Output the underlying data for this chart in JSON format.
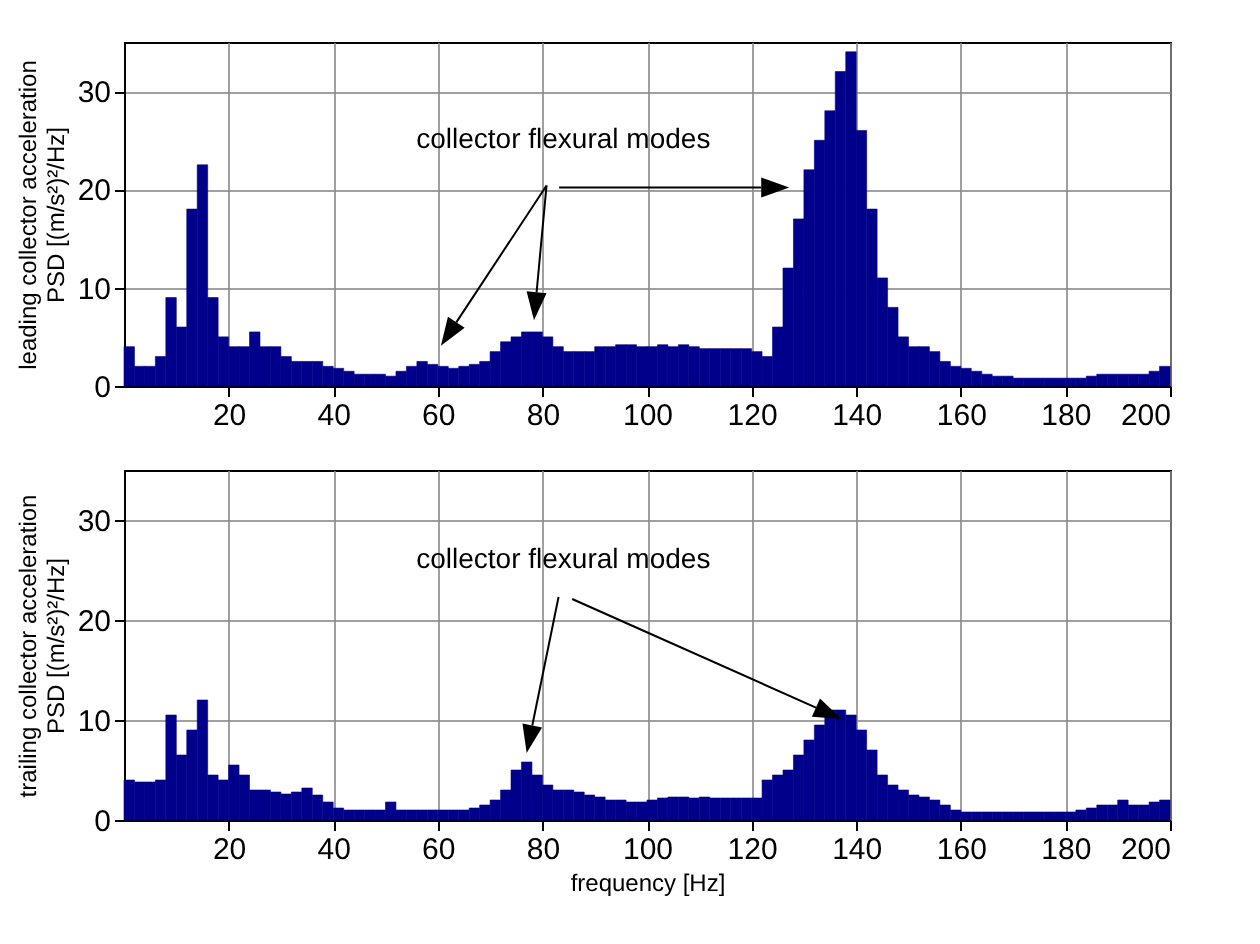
{
  "chart_data": [
    {
      "type": "histogram",
      "ylabel": "leading collector acceleration\nPSD [(m/s²)²/Hz]",
      "annotations": [
        "collector flexural modes"
      ],
      "color": "#00008b",
      "grid": true,
      "xlim": [
        0,
        200
      ],
      "xticks": [
        20,
        40,
        60,
        80,
        100,
        120,
        140,
        160,
        180,
        200
      ],
      "ylim": [
        0,
        35
      ],
      "yticks": [
        0,
        10,
        20,
        30
      ],
      "bins": [
        0,
        2,
        4,
        6,
        8,
        10,
        12,
        14,
        16,
        18,
        20,
        22,
        24,
        26,
        28,
        30,
        32,
        34,
        36,
        38,
        40,
        42,
        44,
        46,
        48,
        50,
        52,
        54,
        56,
        58,
        60,
        62,
        64,
        66,
        68,
        70,
        72,
        74,
        76,
        78,
        80,
        82,
        84,
        86,
        88,
        90,
        92,
        94,
        96,
        98,
        100,
        102,
        104,
        106,
        108,
        110,
        112,
        114,
        116,
        118,
        120,
        122,
        124,
        126,
        128,
        130,
        132,
        134,
        136,
        138,
        140,
        142,
        144,
        146,
        148,
        150,
        152,
        154,
        156,
        158,
        160,
        162,
        164,
        166,
        168,
        170,
        172,
        174,
        176,
        178,
        180,
        182,
        184,
        186,
        188,
        190,
        192,
        194,
        196,
        198,
        200
      ],
      "values": [
        4,
        2,
        2,
        3,
        9,
        6,
        18,
        22.5,
        9,
        5,
        4,
        4,
        5.5,
        4,
        4,
        3,
        2.5,
        2.5,
        2.5,
        2,
        1.8,
        1.5,
        1.2,
        1.2,
        1.2,
        1,
        1.5,
        2,
        2.5,
        2.2,
        2,
        1.8,
        2,
        2.2,
        2.5,
        3.5,
        4.5,
        5,
        5.5,
        5.5,
        5,
        4,
        3.5,
        3.5,
        3.5,
        4,
        4,
        4.2,
        4.2,
        4,
        4,
        4.2,
        4,
        4.2,
        4,
        3.8,
        3.8,
        3.8,
        3.8,
        3.8,
        3.5,
        3,
        6,
        12,
        17,
        22,
        25,
        28,
        32,
        34,
        26,
        18,
        11,
        8,
        5,
        4,
        4,
        3.5,
        2.5,
        2,
        1.8,
        1.5,
        1.2,
        1,
        1,
        0.8,
        0.8,
        0.8,
        0.8,
        0.8,
        0.8,
        0.8,
        1,
        1.2,
        1.2,
        1.2,
        1.2,
        1.2,
        1.5,
        2
      ]
    },
    {
      "type": "histogram",
      "ylabel": "trailing collector acceleration\nPSD [(m/s²)²/Hz]",
      "xlabel": "frequency [Hz]",
      "annotations": [
        "collector flexural modes"
      ],
      "color": "#00008b",
      "grid": true,
      "xlim": [
        0,
        200
      ],
      "xticks": [
        20,
        40,
        60,
        80,
        100,
        120,
        140,
        160,
        180,
        200
      ],
      "ylim": [
        0,
        35
      ],
      "yticks": [
        0,
        10,
        20,
        30
      ],
      "bins": [
        0,
        2,
        4,
        6,
        8,
        10,
        12,
        14,
        16,
        18,
        20,
        22,
        24,
        26,
        28,
        30,
        32,
        34,
        36,
        38,
        40,
        42,
        44,
        46,
        48,
        50,
        52,
        54,
        56,
        58,
        60,
        62,
        64,
        66,
        68,
        70,
        72,
        74,
        76,
        78,
        80,
        82,
        84,
        86,
        88,
        90,
        92,
        94,
        96,
        98,
        100,
        102,
        104,
        106,
        108,
        110,
        112,
        114,
        116,
        118,
        120,
        122,
        124,
        126,
        128,
        130,
        132,
        134,
        136,
        138,
        140,
        142,
        144,
        146,
        148,
        150,
        152,
        154,
        156,
        158,
        160,
        162,
        164,
        166,
        168,
        170,
        172,
        174,
        176,
        178,
        180,
        182,
        184,
        186,
        188,
        190,
        192,
        194,
        196,
        198,
        200
      ],
      "values": [
        4,
        3.8,
        3.8,
        4,
        10.5,
        6.5,
        9,
        12,
        4.5,
        4,
        5.5,
        4.5,
        3,
        3,
        2.8,
        2.6,
        2.8,
        3.2,
        2.5,
        1.8,
        1.2,
        1,
        1,
        1,
        1,
        1.8,
        1,
        1,
        1,
        1,
        1,
        1,
        1,
        1.2,
        1.5,
        2,
        3,
        5,
        5.8,
        4.5,
        3.5,
        3,
        3,
        2.8,
        2.5,
        2.3,
        2,
        2,
        1.8,
        1.8,
        2,
        2.2,
        2.3,
        2.3,
        2.2,
        2.3,
        2.2,
        2.2,
        2.2,
        2.2,
        2.2,
        4,
        4.5,
        5,
        6.5,
        8,
        9.5,
        11,
        11,
        10.5,
        9,
        7,
        4.5,
        3.5,
        3,
        2.5,
        2.3,
        2,
        1.5,
        1,
        0.8,
        0.8,
        0.8,
        0.8,
        0.8,
        0.8,
        0.8,
        0.8,
        0.8,
        0.8,
        0.8,
        1,
        1.2,
        1.5,
        1.5,
        2,
        1.5,
        1.5,
        1.8,
        2
      ]
    }
  ]
}
